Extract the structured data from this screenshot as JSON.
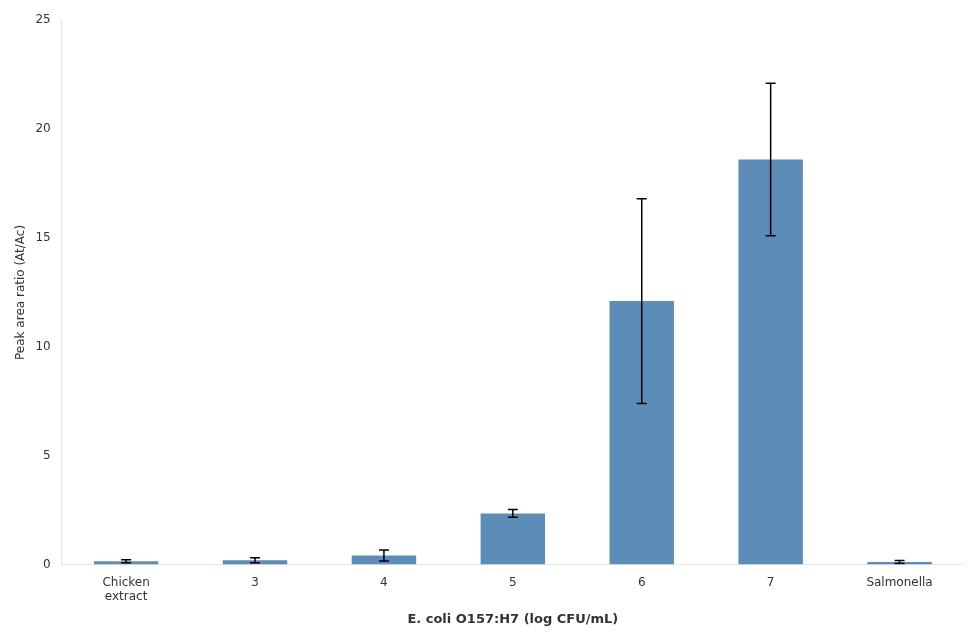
{
  "chart_data": {
    "type": "bar",
    "categories": [
      "Chicken\nextract",
      "3",
      "4",
      "5",
      "6",
      "7",
      "Salmonella"
    ],
    "values": [
      0.15,
      0.2,
      0.42,
      2.35,
      12.1,
      18.6,
      0.12
    ],
    "errors": [
      0.07,
      0.12,
      0.25,
      0.18,
      4.7,
      3.5,
      0.07
    ],
    "color": "#5b8db8",
    "xlabel": "E. coli O157:H7 (log CFU/mL)",
    "ylabel": "Peak area ratio (At/Ac)",
    "ylim": [
      0,
      25
    ],
    "yticks": [
      0,
      5,
      10,
      15,
      20,
      25
    ],
    "grid": false
  }
}
